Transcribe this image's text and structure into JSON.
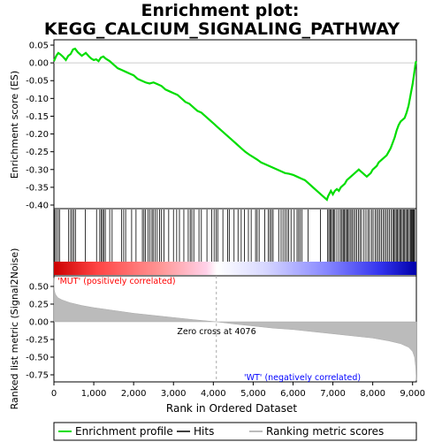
{
  "chart_data": {
    "type": "line",
    "title_line1": "Enrichment plot:",
    "title_line2": "KEGG_CALCIUM_SIGNALING_PATHWAY",
    "es_panel": {
      "ylabel": "Enrichment score (ES)",
      "ylim": [
        -0.41,
        0.065
      ],
      "yticks": [
        0.05,
        0.0,
        -0.05,
        -0.1,
        -0.15,
        -0.2,
        -0.25,
        -0.3,
        -0.35,
        -0.4
      ],
      "ytick_labels": [
        "0.05",
        "0.00",
        "-0.05",
        "-0.10",
        "-0.15",
        "-0.20",
        "-0.25",
        "-0.30",
        "-0.35",
        "-0.40"
      ],
      "series_name": "Enrichment profile",
      "color": "#00dd00",
      "x": [
        0,
        60,
        110,
        160,
        220,
        300,
        360,
        420,
        480,
        530,
        600,
        700,
        800,
        880,
        940,
        1000,
        1060,
        1120,
        1180,
        1240,
        1300,
        1400,
        1500,
        1600,
        1700,
        1800,
        1900,
        2000,
        2100,
        2200,
        2300,
        2400,
        2500,
        2600,
        2700,
        2800,
        2900,
        3000,
        3100,
        3200,
        3300,
        3400,
        3500,
        3600,
        3700,
        3800,
        3900,
        4000,
        4100,
        4200,
        4300,
        4400,
        4500,
        4600,
        4700,
        4800,
        4900,
        5000,
        5100,
        5200,
        5300,
        5400,
        5500,
        5600,
        5700,
        5800,
        5900,
        6000,
        6100,
        6200,
        6300,
        6400,
        6500,
        6600,
        6700,
        6800,
        6850,
        6880,
        6950,
        7000,
        7050,
        7100,
        7150,
        7200,
        7250,
        7300,
        7350,
        7400,
        7450,
        7500,
        7550,
        7600,
        7650,
        7700,
        7750,
        7800,
        7850,
        7900,
        7950,
        8000,
        8050,
        8100,
        8150,
        8200,
        8250,
        8300,
        8350,
        8400,
        8450,
        8500,
        8550,
        8600,
        8650,
        8700,
        8750,
        8800,
        8850,
        8900,
        8950,
        9000,
        9040,
        9070,
        9090
      ],
      "y": [
        0.005,
        0.02,
        0.028,
        0.024,
        0.018,
        0.008,
        0.02,
        0.025,
        0.038,
        0.04,
        0.03,
        0.02,
        0.028,
        0.018,
        0.012,
        0.008,
        0.01,
        0.005,
        0.015,
        0.018,
        0.012,
        0.005,
        -0.005,
        -0.015,
        -0.02,
        -0.025,
        -0.03,
        -0.035,
        -0.045,
        -0.05,
        -0.055,
        -0.058,
        -0.055,
        -0.06,
        -0.065,
        -0.075,
        -0.08,
        -0.085,
        -0.09,
        -0.1,
        -0.11,
        -0.115,
        -0.125,
        -0.135,
        -0.14,
        -0.15,
        -0.16,
        -0.17,
        -0.18,
        -0.19,
        -0.2,
        -0.21,
        -0.22,
        -0.23,
        -0.24,
        -0.25,
        -0.258,
        -0.265,
        -0.272,
        -0.28,
        -0.285,
        -0.29,
        -0.295,
        -0.3,
        -0.305,
        -0.31,
        -0.312,
        -0.315,
        -0.32,
        -0.325,
        -0.33,
        -0.34,
        -0.35,
        -0.36,
        -0.37,
        -0.38,
        -0.385,
        -0.375,
        -0.36,
        -0.37,
        -0.36,
        -0.355,
        -0.36,
        -0.35,
        -0.345,
        -0.34,
        -0.33,
        -0.325,
        -0.32,
        -0.315,
        -0.31,
        -0.305,
        -0.3,
        -0.305,
        -0.31,
        -0.315,
        -0.32,
        -0.315,
        -0.31,
        -0.3,
        -0.295,
        -0.29,
        -0.28,
        -0.275,
        -0.27,
        -0.265,
        -0.26,
        -0.25,
        -0.24,
        -0.225,
        -0.21,
        -0.19,
        -0.175,
        -0.165,
        -0.16,
        -0.155,
        -0.14,
        -0.12,
        -0.09,
        -0.06,
        -0.03,
        -0.005,
        0.005
      ]
    },
    "hits": [
      20,
      60,
      105,
      140,
      370,
      420,
      460,
      500,
      540,
      790,
      1070,
      1150,
      1190,
      1220,
      1250,
      1290,
      1400,
      1460,
      1700,
      1750,
      1800,
      1950,
      2060,
      2220,
      2260,
      2300,
      2360,
      2410,
      2460,
      2490,
      2540,
      2590,
      2650,
      2700,
      2760,
      2880,
      3000,
      3080,
      3150,
      3260,
      3370,
      3420,
      3460,
      3510,
      3640,
      3700,
      3840,
      3960,
      4020,
      4070,
      4110,
      4240,
      4360,
      4400,
      4520,
      4620,
      4700,
      4780,
      4880,
      4950,
      5060,
      5100,
      5150,
      5290,
      5380,
      5420,
      5460,
      5500,
      5640,
      5700,
      5750,
      5800,
      5850,
      5890,
      5950,
      6030,
      6100,
      6140,
      6180,
      6220,
      6380,
      6690,
      6870,
      6900,
      6930,
      6960,
      6990,
      7020,
      7050,
      7100,
      7150,
      7200,
      7230,
      7260,
      7290,
      7320,
      7350,
      7380,
      7410,
      7450,
      7480,
      7520,
      7560,
      7600,
      7640,
      7680,
      7720,
      7780,
      7830,
      7880,
      7920,
      7970,
      8010,
      8060,
      8100,
      8140,
      8180,
      8220,
      8260,
      8300,
      8340,
      8380,
      8420,
      8460,
      8500,
      8530,
      8560,
      8590,
      8620,
      8650,
      8680,
      8710,
      8740,
      8770,
      8800,
      8830,
      8860,
      8890,
      8920,
      8950,
      8970,
      8990,
      9010,
      9030,
      9050
    ],
    "metric_panel": {
      "ylabel": "Ranked list metric (Signal2Noise)",
      "ylim": [
        -0.85,
        0.65
      ],
      "yticks": [
        0.5,
        0.25,
        0.0,
        -0.25,
        -0.5,
        -0.75
      ],
      "ytick_labels": [
        "0.50",
        "0.25",
        "0.00",
        "-0.25",
        "-0.50",
        "-0.75"
      ],
      "x": [
        0,
        10,
        30,
        60,
        100,
        200,
        400,
        700,
        1000,
        1500,
        2000,
        2500,
        3000,
        3500,
        4076,
        4500,
        5000,
        5500,
        6000,
        6500,
        7000,
        7500,
        8000,
        8400,
        8700,
        8900,
        9000,
        9050,
        9080,
        9095
      ],
      "y": [
        0.62,
        0.45,
        0.4,
        0.37,
        0.34,
        0.31,
        0.27,
        0.23,
        0.2,
        0.16,
        0.12,
        0.09,
        0.06,
        0.03,
        0.0,
        -0.03,
        -0.06,
        -0.09,
        -0.11,
        -0.14,
        -0.17,
        -0.2,
        -0.23,
        -0.27,
        -0.31,
        -0.36,
        -0.42,
        -0.5,
        -0.65,
        -0.83
      ],
      "zero_cross_label": "Zero cross at 4076",
      "zero_cross_x": 4076,
      "pos_label": "'MUT' (positively correlated)",
      "neg_label": "'WT' (negatively correlated)",
      "pos_label_color": "#ff0000",
      "neg_label_color": "#0000ff"
    },
    "xaxis": {
      "xlabel": "Rank in Ordered Dataset",
      "xlim": [
        0,
        9095
      ],
      "xticks": [
        0,
        1000,
        2000,
        3000,
        4000,
        5000,
        6000,
        7000,
        8000,
        9000
      ],
      "xtick_labels": [
        "0",
        "1,000",
        "2,000",
        "3,000",
        "4,000",
        "5,000",
        "6,000",
        "7,000",
        "8,000",
        "9,000"
      ]
    },
    "legend": {
      "placement": "bottom",
      "items": [
        {
          "label": "Enrichment profile",
          "color": "#00dd00",
          "kind": "line"
        },
        {
          "label": "Hits",
          "color": "#000000",
          "kind": "line"
        },
        {
          "label": "Ranking metric scores",
          "color": "#bbbbbb",
          "kind": "line"
        }
      ]
    }
  }
}
